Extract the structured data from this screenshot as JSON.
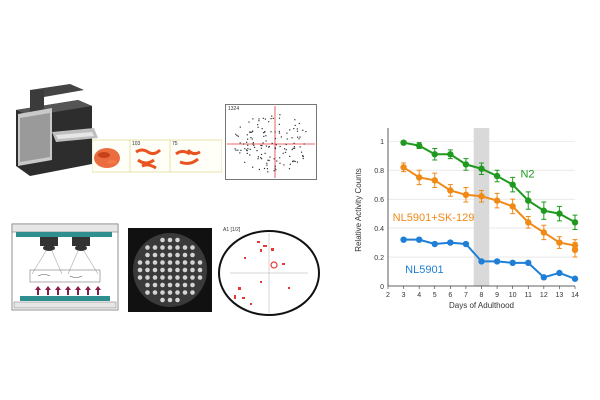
{
  "schematic": {
    "strip_labels": [
      "103",
      "75",
      "32"
    ],
    "frame_label": "1324",
    "scatter_label": "A1 [1/2]",
    "colors": {
      "worm": "#e8531f",
      "device": "#3a3a3a",
      "frame_border": "#d8d27a",
      "teal": "#2f8f8f",
      "arrow": "#8a1a4a",
      "crosshair": "#e53935"
    }
  },
  "chart_data": {
    "type": "line",
    "xlabel": "Days of Adulthood",
    "ylabel": "Relative Activity Counts",
    "xlim": [
      2,
      14
    ],
    "ylim": [
      0,
      1.05
    ],
    "xticks": [
      2,
      3,
      4,
      5,
      6,
      7,
      8,
      9,
      10,
      11,
      12,
      13,
      14
    ],
    "yticks": [
      0,
      0.2,
      0.4,
      0.6,
      0.8,
      1
    ],
    "ytick_labels": [
      "0",
      "0.2",
      "0.4",
      "0.6",
      "0.8",
      "1"
    ],
    "shaded_region": [
      7.5,
      8.5
    ],
    "x": [
      3,
      4,
      5,
      6,
      7,
      8,
      9,
      10,
      11,
      12,
      13,
      14
    ],
    "series": [
      {
        "name": "N2",
        "color": "#1f9a1f",
        "values": [
          0.99,
          0.97,
          0.91,
          0.91,
          0.84,
          0.81,
          0.76,
          0.7,
          0.59,
          0.52,
          0.5,
          0.44
        ],
        "errors": [
          0.01,
          0.02,
          0.04,
          0.03,
          0.04,
          0.04,
          0.04,
          0.05,
          0.06,
          0.06,
          0.05,
          0.05
        ]
      },
      {
        "name": "NL5901+SK-129",
        "color": "#f08a16",
        "values": [
          0.82,
          0.75,
          0.73,
          0.66,
          0.63,
          0.62,
          0.59,
          0.55,
          0.44,
          0.37,
          0.3,
          0.28,
          0.25
        ],
        "x": [
          3,
          4,
          5,
          6,
          7,
          8,
          9,
          10,
          11,
          12,
          13,
          14,
          14
        ],
        "errors": [
          0.03,
          0.05,
          0.05,
          0.04,
          0.05,
          0.04,
          0.05,
          0.05,
          0.04,
          0.05,
          0.04,
          0.04,
          0.05
        ]
      },
      {
        "name": "NL5901",
        "color": "#1f7fd6",
        "values": [
          0.32,
          0.32,
          0.29,
          0.3,
          0.29,
          0.17,
          0.17,
          0.16,
          0.16,
          0.06,
          0.09,
          0.05
        ],
        "errors": [
          0.01,
          0.01,
          0.01,
          0.01,
          0.01,
          0.01,
          0.01,
          0.01,
          0.01,
          0.01,
          0.01,
          0.01
        ]
      }
    ]
  }
}
